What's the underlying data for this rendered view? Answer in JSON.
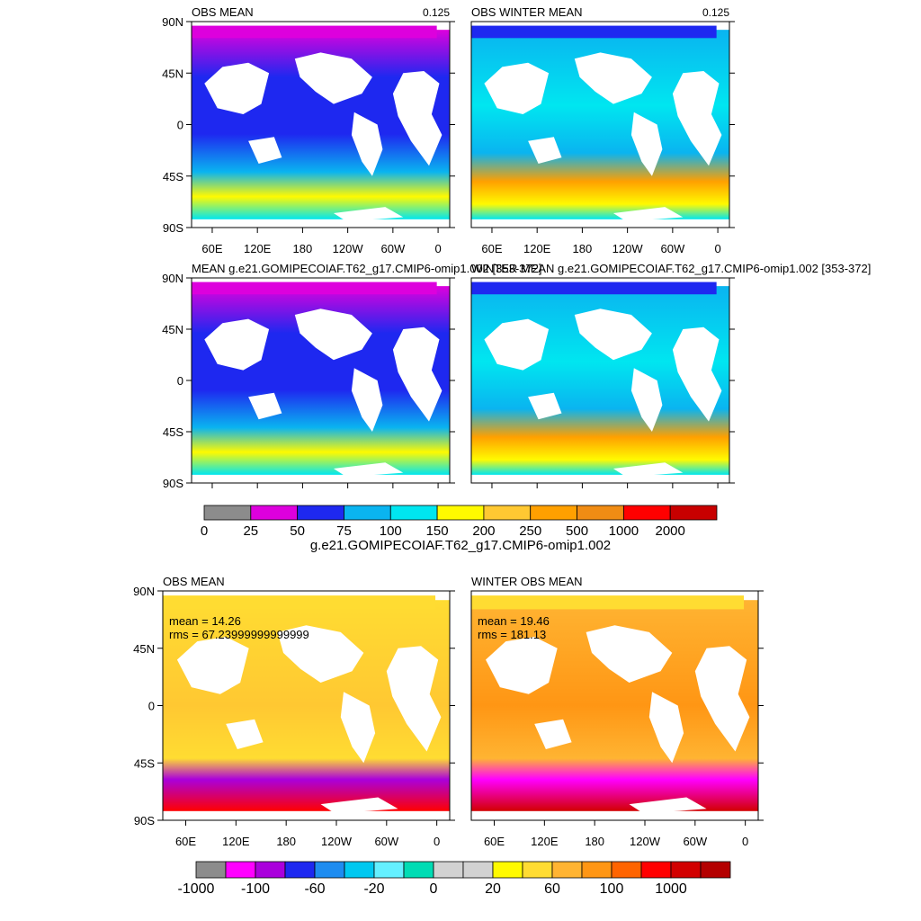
{
  "chart_data": [
    {
      "type": "heatmap",
      "title": "OBS MEAN",
      "corner_value": "0.125",
      "y_ticks": [
        "90N",
        "45N",
        "0",
        "45S",
        "90S"
      ],
      "x_ticks": [
        "60E",
        "120E",
        "180",
        "120W",
        "60W",
        "0"
      ]
    },
    {
      "type": "heatmap",
      "title": "OBS WINTER MEAN",
      "corner_value": "0.125",
      "x_ticks": [
        "60E",
        "120E",
        "180",
        "120W",
        "60W",
        "0"
      ]
    },
    {
      "type": "heatmap",
      "title": "MEAN g.e21.GOMIPECOIAF.T62_g17.CMIP6-omip1.002 [353-372]",
      "y_ticks": [
        "90N",
        "45N",
        "0",
        "45S",
        "90S"
      ]
    },
    {
      "type": "heatmap",
      "title": "WINTER MEAN g.e21.GOMIPECOIAF.T62_g17.CMIP6-omip1.002 [353-372]"
    },
    {
      "type": "heatmap",
      "title": "OBS MEAN",
      "stats": [
        "mean = 14.26",
        "rms = 67.23999999999999"
      ],
      "y_ticks": [
        "90N",
        "45N",
        "0",
        "45S",
        "90S"
      ],
      "x_ticks": [
        "60E",
        "120E",
        "180",
        "120W",
        "60W",
        "0"
      ]
    },
    {
      "type": "heatmap",
      "title": "WINTER OBS MEAN",
      "stats": [
        "mean = 19.46",
        "rms = 181.13"
      ],
      "x_ticks": [
        "60E",
        "120E",
        "180",
        "120W",
        "60W",
        "0"
      ]
    }
  ],
  "colorbar_top": {
    "title": "g.e21.GOMIPECOIAF.T62_g17.CMIP6-omip1.002",
    "labels": [
      "0",
      "25",
      "50",
      "75",
      "100",
      "150",
      "200",
      "250",
      "500",
      "1000",
      "2000"
    ],
    "colors": [
      "#8c8c8c",
      "#dd00dd",
      "#1e28f0",
      "#0ab4f0",
      "#00e6f0",
      "#fffa00",
      "#ffc832",
      "#ffa000",
      "#f08c14",
      "#ff0000",
      "#c80000"
    ]
  },
  "colorbar_bottom": {
    "labels": [
      "-1000",
      "-100",
      "-60",
      "-20",
      "0",
      "20",
      "60",
      "100",
      "1000"
    ],
    "colors": [
      "#8c8c8c",
      "#ff00ff",
      "#aa00dc",
      "#1e28f0",
      "#1e8cf0",
      "#00c8f0",
      "#64f0ff",
      "#00dcb4",
      "#d2d2d2",
      "#d2d2d2",
      "#fffa00",
      "#ffdc32",
      "#ffb432",
      "#ff9614",
      "#ff6400",
      "#ff0000",
      "#d20000",
      "#b40000"
    ]
  }
}
